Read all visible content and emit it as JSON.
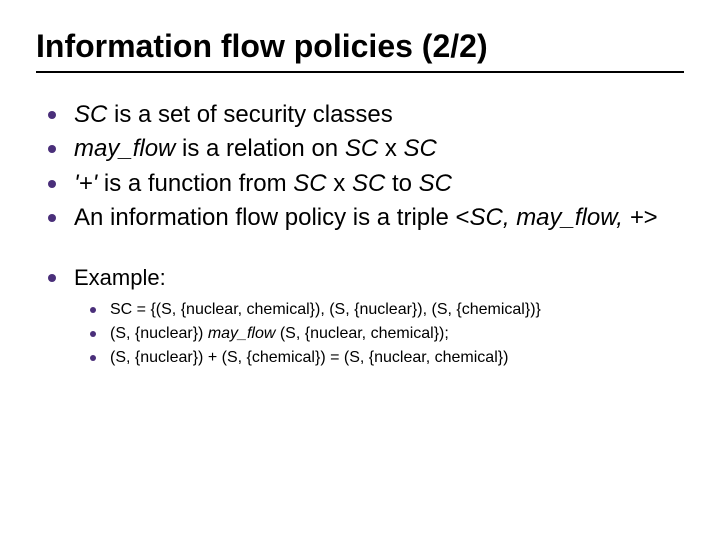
{
  "colors": {
    "background": "#ffffff",
    "text": "#000000",
    "bullet": "#4a2f7a",
    "underline": "#000000"
  },
  "typography": {
    "title_fontsize": 32,
    "main_fontsize": 24,
    "example_fontsize": 22,
    "sub_fontsize": 16,
    "font_family": "Arial"
  },
  "title": "Information flow policies (2/2)",
  "bullets": [
    {
      "html": "<span class='italic'>SC</span> is a set of security classes"
    },
    {
      "html": "<span class='italic'>may_flow</span> is a relation on <span class='italic'>SC</span> x <span class='italic'>SC</span>"
    },
    {
      "html": "<span class='italic'>'+'</span> is a function from <span class='italic'>SC</span> x <span class='italic'>SC</span> to <span class='italic'>SC</span>"
    },
    {
      "html": "An information flow policy is a triple &lt;<span class='italic'>SC, may_flow, +</span>&gt;"
    }
  ],
  "example_label": "Example:",
  "example_items": [
    {
      "html": "SC = {(S, {nuclear, chemical}), (S, {nuclear}), (S, {chemical})}"
    },
    {
      "html": "(S, {nuclear}) <span class='italic'>may_flow</span> (S, {nuclear, chemical});"
    },
    {
      "html": "(S, {nuclear}) + (S, {chemical}) = (S, {nuclear, chemical})"
    }
  ]
}
